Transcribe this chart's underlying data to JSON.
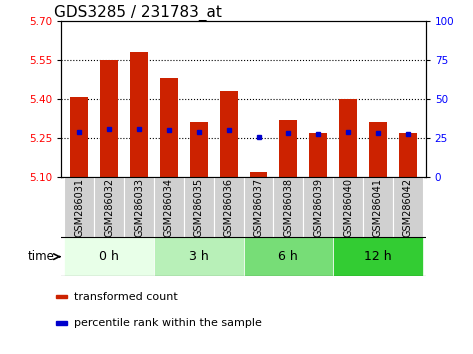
{
  "title": "GDS3285 / 231783_at",
  "samples": [
    "GSM286031",
    "GSM286032",
    "GSM286033",
    "GSM286034",
    "GSM286035",
    "GSM286036",
    "GSM286037",
    "GSM286038",
    "GSM286039",
    "GSM286040",
    "GSM286041",
    "GSM286042"
  ],
  "bar_values": [
    5.41,
    5.55,
    5.58,
    5.48,
    5.31,
    5.43,
    5.12,
    5.32,
    5.27,
    5.4,
    5.31,
    5.27
  ],
  "bar_bottom": 5.1,
  "blue_dot_values": [
    5.275,
    5.285,
    5.285,
    5.28,
    5.275,
    5.28,
    5.255,
    5.27,
    5.265,
    5.275,
    5.27,
    5.265
  ],
  "ylim_left": [
    5.1,
    5.7
  ],
  "ylim_right": [
    0,
    100
  ],
  "yticks_left": [
    5.1,
    5.25,
    5.4,
    5.55,
    5.7
  ],
  "yticks_right": [
    0,
    25,
    50,
    75,
    100
  ],
  "bar_color": "#cc2200",
  "dot_color": "#0000cc",
  "bar_width": 0.6,
  "groups": [
    {
      "label": "0 h",
      "start": 0,
      "end": 3,
      "color": "#e8ffe8"
    },
    {
      "label": "3 h",
      "start": 3,
      "end": 6,
      "color": "#b8f0b8"
    },
    {
      "label": "6 h",
      "start": 6,
      "end": 9,
      "color": "#77dd77"
    },
    {
      "label": "12 h",
      "start": 9,
      "end": 12,
      "color": "#33cc33"
    }
  ],
  "time_label": "time",
  "legend_items": [
    {
      "color": "#cc2200",
      "label": "transformed count"
    },
    {
      "color": "#0000cc",
      "label": "percentile rank within the sample"
    }
  ],
  "bg_color": "white",
  "plot_bg": "white",
  "title_fontsize": 11,
  "tick_fontsize": 7.5,
  "sample_label_fontsize": 7,
  "group_label_fontsize": 9,
  "legend_fontsize": 8,
  "gray_bg": "#d0d0d0"
}
